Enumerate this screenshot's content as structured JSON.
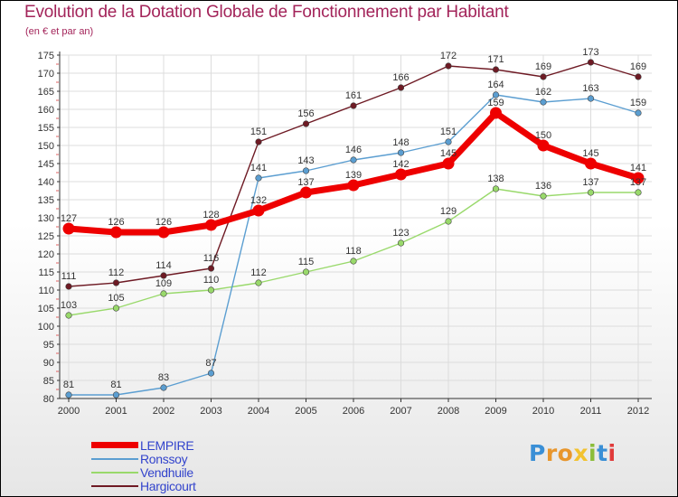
{
  "title": "Evolution de la Dotation Globale de Fonctionnement par Habitant",
  "subtitle": "(en € et par an)",
  "logo": {
    "text": "Proxiti",
    "letter_colors": [
      "#3a8fd6",
      "#e8962d",
      "#e8962d",
      "#f2c230",
      "#8bbd3a",
      "#3a8fd6",
      "#e03a3a"
    ]
  },
  "chart_data": {
    "type": "line",
    "title": "Evolution de la Dotation Globale de Fonctionnement par Habitant",
    "subtitle": "(en € et par an)",
    "xlabel": "",
    "ylabel": "",
    "ylim": [
      80,
      175
    ],
    "y_ticks": [
      80,
      85,
      90,
      95,
      100,
      105,
      110,
      115,
      120,
      125,
      130,
      135,
      140,
      145,
      150,
      155,
      160,
      165,
      170,
      175
    ],
    "grid": true,
    "categories": [
      "2000",
      "2001",
      "2002",
      "2003",
      "2004",
      "2005",
      "2006",
      "2007",
      "2008",
      "2009",
      "2010",
      "2011",
      "2012"
    ],
    "series": [
      {
        "name": "Hargicourt",
        "color": "#6e1a24",
        "values": [
          111,
          112,
          114,
          116,
          151,
          156,
          161,
          166,
          172,
          171,
          169,
          173,
          169
        ]
      },
      {
        "name": "Vendhuile",
        "color": "#99d96b",
        "values": [
          103,
          105,
          109,
          110,
          112,
          115,
          118,
          123,
          129,
          138,
          136,
          137,
          137
        ]
      },
      {
        "name": "Ronssoy",
        "color": "#5b9ed1",
        "values": [
          81,
          81,
          83,
          87,
          141,
          143,
          146,
          148,
          151,
          164,
          162,
          163,
          159
        ]
      },
      {
        "name": "LEMPIRE",
        "color": "#ee0000",
        "values": [
          127,
          126,
          126,
          128,
          132,
          137,
          139,
          142,
          145,
          159,
          150,
          145,
          141
        ]
      }
    ],
    "legend": {
      "position": "bottom-left",
      "entries": [
        "LEMPIRE",
        "Ronssoy",
        "Vendhuile",
        "Hargicourt"
      ]
    }
  }
}
